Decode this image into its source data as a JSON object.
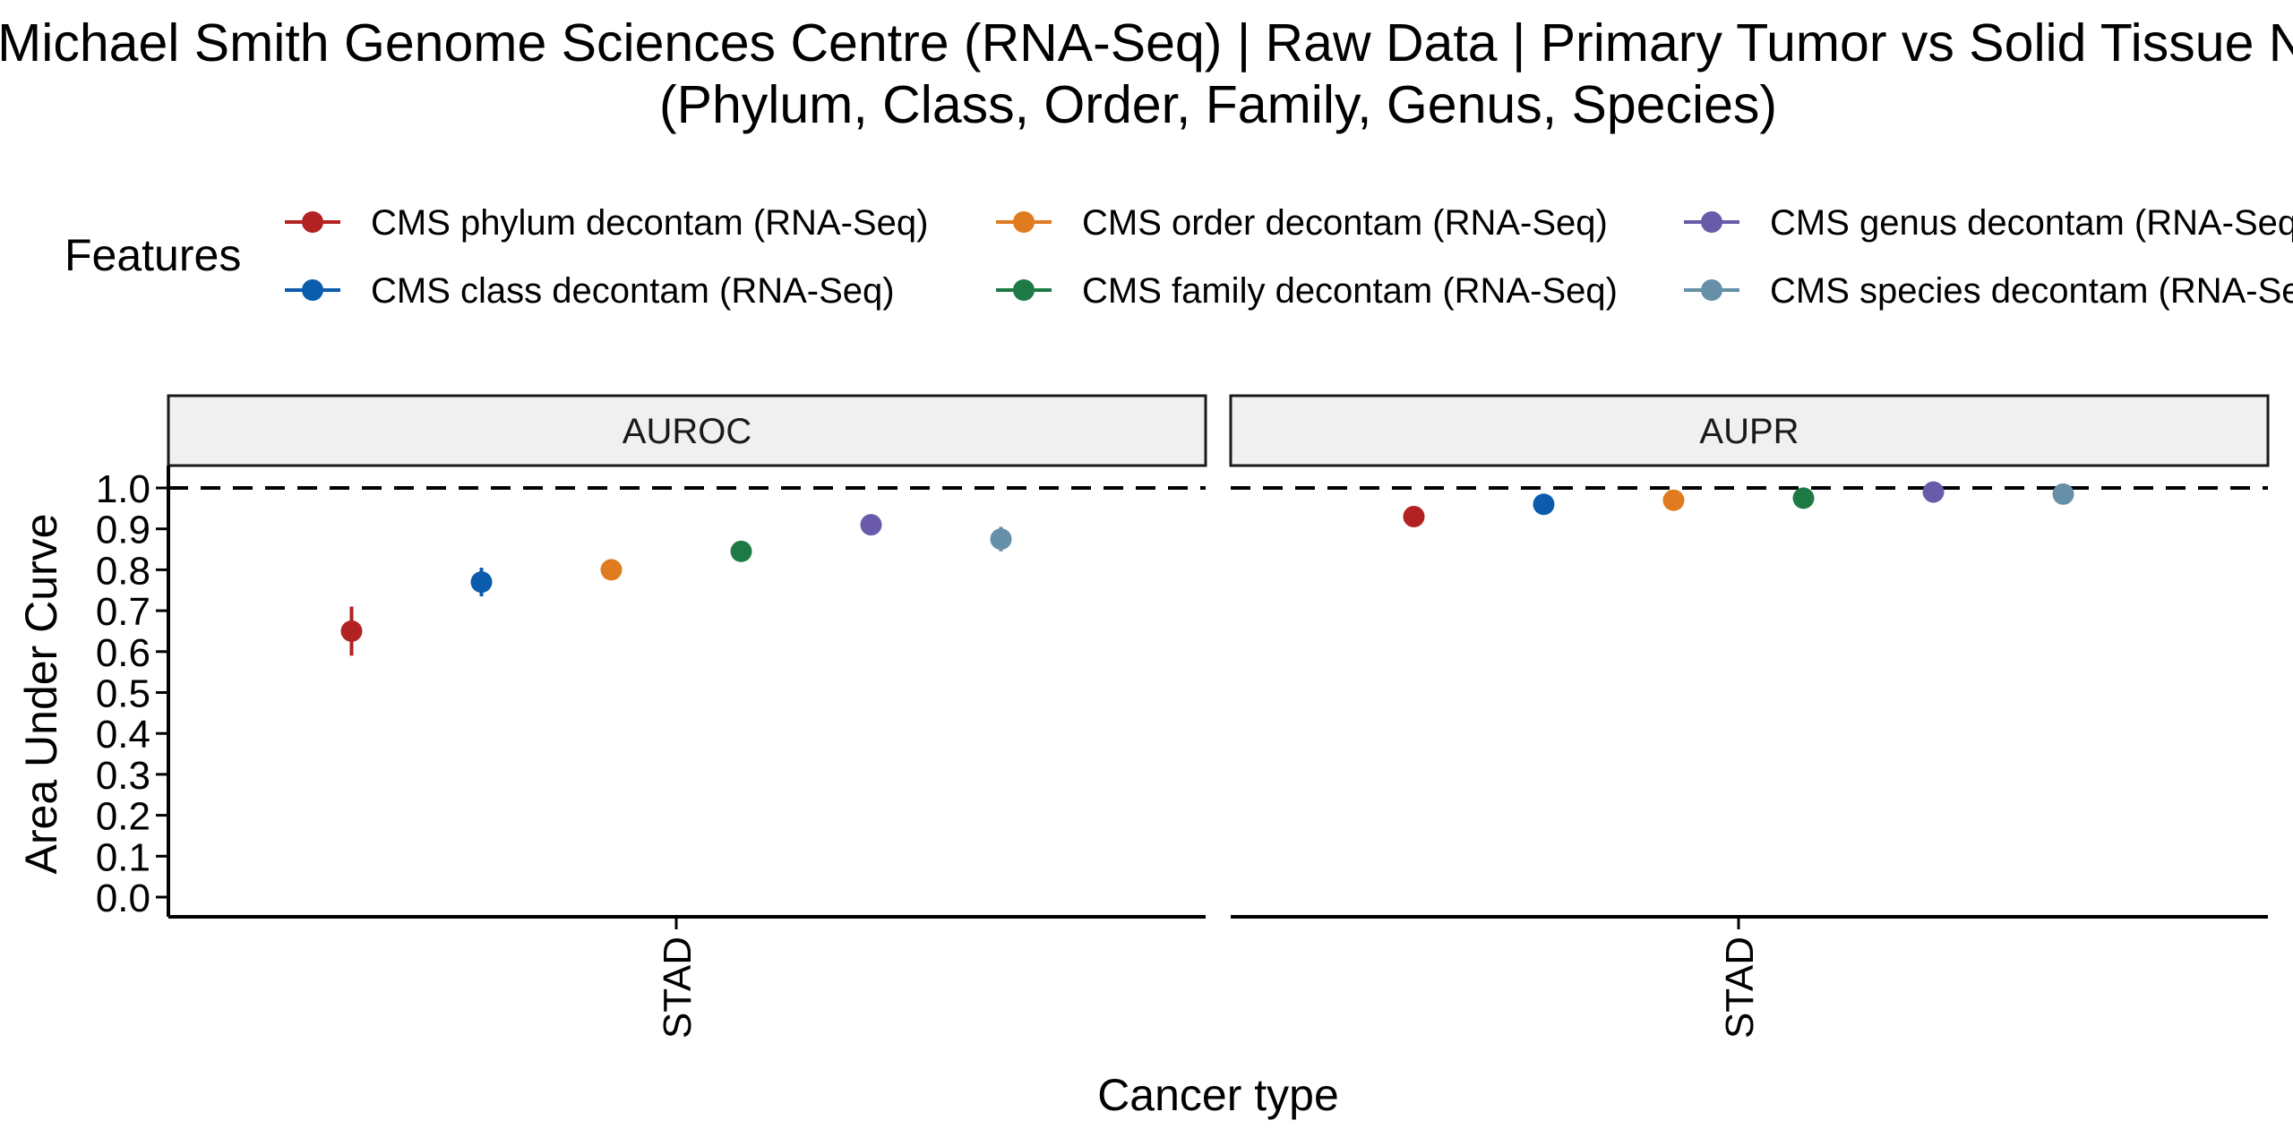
{
  "chart_data": {
    "type": "scatter",
    "title_lines": [
      "Michael Smith Genome Sciences Centre (RNA-Seq) | Raw Data | Primary Tumor vs Solid Tissue Normal",
      "(Phylum, Class, Order, Family, Genus, Species)"
    ],
    "legend_title": "Features",
    "legend_placement": "top",
    "series": [
      {
        "name": "CMS phylum decontam (RNA-Seq)",
        "color": "#B22222"
      },
      {
        "name": "CMS class decontam (RNA-Seq)",
        "color": "#0B5CAD"
      },
      {
        "name": "CMS order decontam (RNA-Seq)",
        "color": "#E07B1F"
      },
      {
        "name": "CMS family decontam (RNA-Seq)",
        "color": "#1E7A45"
      },
      {
        "name": "CMS genus decontam (RNA-Seq)",
        "color": "#6A5AAA"
      },
      {
        "name": "CMS species decontam (RNA-Seq)",
        "color": "#6690A8"
      }
    ],
    "facets": [
      {
        "label": "AUROC",
        "category": "STAD",
        "points": [
          {
            "value": 0.65,
            "low": 0.59,
            "high": 0.71
          },
          {
            "value": 0.77,
            "low": 0.735,
            "high": 0.805
          },
          {
            "value": 0.8,
            "low": 0.79,
            "high": 0.81
          },
          {
            "value": 0.845,
            "low": 0.825,
            "high": 0.865
          },
          {
            "value": 0.91,
            "low": 0.9,
            "high": 0.92
          },
          {
            "value": 0.875,
            "low": 0.845,
            "high": 0.905
          }
        ]
      },
      {
        "label": "AUPR",
        "category": "STAD",
        "points": [
          {
            "value": 0.93,
            "low": 0.92,
            "high": 0.94
          },
          {
            "value": 0.96,
            "low": 0.955,
            "high": 0.965
          },
          {
            "value": 0.97,
            "low": 0.965,
            "high": 0.975
          },
          {
            "value": 0.975,
            "low": 0.97,
            "high": 0.98
          },
          {
            "value": 0.99,
            "low": 0.985,
            "high": 0.995
          },
          {
            "value": 0.985,
            "low": 0.98,
            "high": 0.99
          }
        ]
      }
    ],
    "ylabel": "Area Under Curve",
    "xlabel": "Cancer type",
    "ylim": [
      0,
      1
    ],
    "y_ticks": [
      "0.0",
      "0.1",
      "0.2",
      "0.3",
      "0.4",
      "0.5",
      "0.6",
      "0.7",
      "0.8",
      "0.9",
      "1.0"
    ],
    "reference_line": 1.0,
    "grid": false
  }
}
